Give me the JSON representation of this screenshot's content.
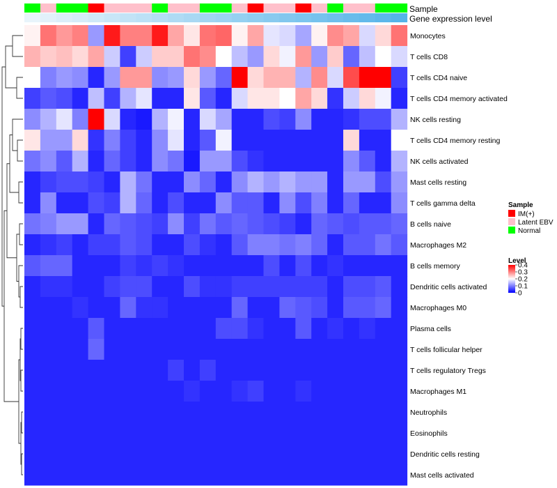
{
  "chart_data": {
    "type": "heatmap",
    "annotation_labels": [
      "Sample",
      "Gene expression level"
    ],
    "sample_groups": [
      "Normal",
      "Latent EBV",
      "Normal",
      "Normal",
      "IM(+)",
      "Latent EBV",
      "Latent EBV",
      "Latent EBV",
      "Normal",
      "Latent EBV",
      "Latent EBV",
      "Normal",
      "Normal",
      "Latent EBV",
      "IM(+)",
      "Latent EBV",
      "Latent EBV",
      "IM(+)",
      "Latent EBV",
      "Normal",
      "Latent EBV",
      "Latent EBV",
      "Normal",
      "Normal"
    ],
    "gene_expression_level": [
      0.0,
      0.04,
      0.09,
      0.13,
      0.17,
      0.22,
      0.26,
      0.3,
      0.35,
      0.39,
      0.43,
      0.48,
      0.52,
      0.57,
      0.61,
      0.65,
      0.7,
      0.74,
      0.78,
      0.83,
      0.87,
      0.91,
      0.96,
      1.0
    ],
    "rows": [
      "Monocytes",
      "T cells CD8",
      "T cells CD4 naive",
      "T cells CD4 memory activated",
      "NK cells resting",
      "T cells CD4 memory resting",
      "NK cells activated",
      "Mast cells resting",
      "T cells gamma delta",
      "B cells naive",
      "Macrophages M2",
      "B cells memory",
      "Dendritic cells activated",
      "Macrophages M0",
      "Plasma cells",
      "T cells follicular helper",
      "T cells regulatory  Tregs",
      "Macrophages M1",
      "Neutrophils",
      "Eosinophils",
      "Dendritic cells resting",
      "Mast cells activated"
    ],
    "values": [
      [
        0.21,
        0.31,
        0.28,
        0.3,
        0.12,
        0.38,
        0.3,
        0.3,
        0.38,
        0.27,
        0.22,
        0.31,
        0.32,
        0.21,
        0.27,
        0.18,
        0.17,
        0.13,
        0.21,
        0.29,
        0.27,
        0.17,
        0.23,
        0.31
      ],
      [
        0.26,
        0.24,
        0.25,
        0.23,
        0.27,
        0.16,
        0.05,
        0.16,
        0.24,
        0.24,
        0.31,
        0.29,
        0.2,
        0.15,
        0.12,
        0.23,
        0.19,
        0.28,
        0.12,
        0.24,
        0.08,
        0.15,
        0.2,
        0.17
      ],
      [
        0.2,
        0.1,
        0.12,
        0.11,
        0.03,
        0.12,
        0.28,
        0.28,
        0.11,
        0.12,
        0.23,
        0.12,
        0.08,
        0.4,
        0.23,
        0.26,
        0.26,
        0.14,
        0.29,
        0.17,
        0.34,
        0.4,
        0.4,
        0.05
      ],
      [
        0.05,
        0.07,
        0.06,
        0.03,
        0.15,
        0.05,
        0.14,
        0.18,
        0.03,
        0.03,
        0.22,
        0.07,
        0.03,
        0.17,
        0.22,
        0.22,
        0.2,
        0.27,
        0.23,
        0.04,
        0.16,
        0.23,
        0.19,
        0.03
      ],
      [
        0.11,
        0.14,
        0.18,
        0.1,
        0.4,
        0.17,
        0.03,
        0.02,
        0.14,
        0.19,
        0.03,
        0.17,
        0.13,
        0.03,
        0.03,
        0.06,
        0.05,
        0.11,
        0.03,
        0.03,
        0.04,
        0.06,
        0.06,
        0.14
      ],
      [
        0.22,
        0.12,
        0.12,
        0.23,
        0.04,
        0.1,
        0.05,
        0.03,
        0.11,
        0.18,
        0.03,
        0.07,
        0.19,
        0.03,
        0.03,
        0.03,
        0.03,
        0.03,
        0.03,
        0.03,
        0.23,
        0.03,
        0.03,
        0.2
      ],
      [
        0.09,
        0.11,
        0.07,
        0.14,
        0.03,
        0.08,
        0.05,
        0.03,
        0.11,
        0.09,
        0.02,
        0.12,
        0.12,
        0.06,
        0.04,
        0.03,
        0.03,
        0.03,
        0.03,
        0.03,
        0.11,
        0.07,
        0.03,
        0.14
      ],
      [
        0.03,
        0.05,
        0.06,
        0.06,
        0.05,
        0.03,
        0.14,
        0.09,
        0.03,
        0.03,
        0.11,
        0.08,
        0.03,
        0.11,
        0.14,
        0.12,
        0.14,
        0.12,
        0.12,
        0.03,
        0.12,
        0.12,
        0.06,
        0.12
      ],
      [
        0.03,
        0.11,
        0.03,
        0.03,
        0.06,
        0.05,
        0.14,
        0.08,
        0.03,
        0.06,
        0.03,
        0.03,
        0.11,
        0.07,
        0.07,
        0.03,
        0.11,
        0.06,
        0.1,
        0.03,
        0.08,
        0.03,
        0.03,
        0.11
      ],
      [
        0.09,
        0.1,
        0.12,
        0.12,
        0.03,
        0.08,
        0.07,
        0.06,
        0.05,
        0.11,
        0.05,
        0.09,
        0.07,
        0.08,
        0.07,
        0.06,
        0.05,
        0.03,
        0.08,
        0.07,
        0.06,
        0.07,
        0.07,
        0.08
      ],
      [
        0.03,
        0.04,
        0.05,
        0.03,
        0.05,
        0.05,
        0.07,
        0.06,
        0.03,
        0.03,
        0.06,
        0.04,
        0.03,
        0.07,
        0.1,
        0.1,
        0.09,
        0.1,
        0.08,
        0.03,
        0.07,
        0.07,
        0.09,
        0.07
      ],
      [
        0.07,
        0.08,
        0.08,
        0.03,
        0.03,
        0.03,
        0.05,
        0.04,
        0.05,
        0.04,
        0.03,
        0.03,
        0.03,
        0.03,
        0.03,
        0.06,
        0.03,
        0.06,
        0.03,
        0.04,
        0.03,
        0.03,
        0.03,
        0.03
      ],
      [
        0.03,
        0.04,
        0.04,
        0.03,
        0.03,
        0.05,
        0.06,
        0.06,
        0.03,
        0.03,
        0.06,
        0.04,
        0.04,
        0.05,
        0.05,
        0.05,
        0.05,
        0.05,
        0.05,
        0.03,
        0.06,
        0.06,
        0.07,
        0.03
      ],
      [
        0.03,
        0.03,
        0.03,
        0.04,
        0.03,
        0.03,
        0.08,
        0.04,
        0.04,
        0.03,
        0.03,
        0.03,
        0.03,
        0.08,
        0.03,
        0.03,
        0.08,
        0.07,
        0.06,
        0.03,
        0.07,
        0.07,
        0.08,
        0.03
      ],
      [
        0.03,
        0.03,
        0.03,
        0.03,
        0.07,
        0.03,
        0.03,
        0.03,
        0.03,
        0.03,
        0.03,
        0.03,
        0.06,
        0.06,
        0.04,
        0.03,
        0.03,
        0.07,
        0.03,
        0.04,
        0.03,
        0.04,
        0.03,
        0.03
      ],
      [
        0.03,
        0.03,
        0.03,
        0.03,
        0.08,
        0.03,
        0.03,
        0.03,
        0.03,
        0.03,
        0.03,
        0.03,
        0.03,
        0.03,
        0.03,
        0.03,
        0.03,
        0.03,
        0.03,
        0.03,
        0.03,
        0.03,
        0.03,
        0.03
      ],
      [
        0.03,
        0.03,
        0.03,
        0.03,
        0.03,
        0.03,
        0.03,
        0.03,
        0.03,
        0.05,
        0.03,
        0.05,
        0.03,
        0.03,
        0.03,
        0.03,
        0.03,
        0.03,
        0.03,
        0.03,
        0.03,
        0.03,
        0.03,
        0.03
      ],
      [
        0.03,
        0.03,
        0.03,
        0.03,
        0.03,
        0.03,
        0.03,
        0.03,
        0.03,
        0.03,
        0.04,
        0.03,
        0.03,
        0.04,
        0.05,
        0.03,
        0.03,
        0.04,
        0.03,
        0.03,
        0.03,
        0.03,
        0.03,
        0.03
      ],
      [
        0.03,
        0.03,
        0.03,
        0.03,
        0.03,
        0.03,
        0.03,
        0.03,
        0.03,
        0.03,
        0.03,
        0.03,
        0.03,
        0.03,
        0.03,
        0.03,
        0.03,
        0.03,
        0.03,
        0.03,
        0.03,
        0.03,
        0.03,
        0.03
      ],
      [
        0.03,
        0.03,
        0.03,
        0.03,
        0.03,
        0.03,
        0.03,
        0.03,
        0.03,
        0.03,
        0.03,
        0.03,
        0.03,
        0.03,
        0.03,
        0.03,
        0.03,
        0.03,
        0.03,
        0.03,
        0.03,
        0.03,
        0.03,
        0.03
      ],
      [
        0.03,
        0.03,
        0.03,
        0.03,
        0.03,
        0.03,
        0.03,
        0.03,
        0.03,
        0.03,
        0.03,
        0.03,
        0.03,
        0.03,
        0.03,
        0.03,
        0.03,
        0.03,
        0.03,
        0.03,
        0.03,
        0.03,
        0.03,
        0.03
      ],
      [
        0.03,
        0.03,
        0.03,
        0.03,
        0.03,
        0.03,
        0.03,
        0.03,
        0.03,
        0.03,
        0.03,
        0.03,
        0.03,
        0.03,
        0.03,
        0.03,
        0.03,
        0.03,
        0.03,
        0.03,
        0.03,
        0.03,
        0.03,
        0.03
      ]
    ],
    "color_scale": {
      "min": 0,
      "max": 0.4,
      "stops": [
        {
          "value": 0,
          "color": "#0000ff"
        },
        {
          "value": 0.2,
          "color": "#ffffff"
        },
        {
          "value": 0.4,
          "color": "#ff0000"
        }
      ]
    },
    "legend": {
      "sample_title": "Sample",
      "sample_items": [
        {
          "label": "IM(+)",
          "color": "#ff0000"
        },
        {
          "label": "Latent EBV",
          "color": "#ffc0cb"
        },
        {
          "label": "Normal",
          "color": "#00ff00"
        }
      ],
      "level_title": "Level",
      "level_ticks": [
        0.4,
        0.3,
        0.2,
        0.1,
        0
      ],
      "placement": "right"
    },
    "gene_expression_colors": {
      "low": "#e8f4fb",
      "high": "#56b4e9"
    },
    "row_dendrogram": true
  }
}
